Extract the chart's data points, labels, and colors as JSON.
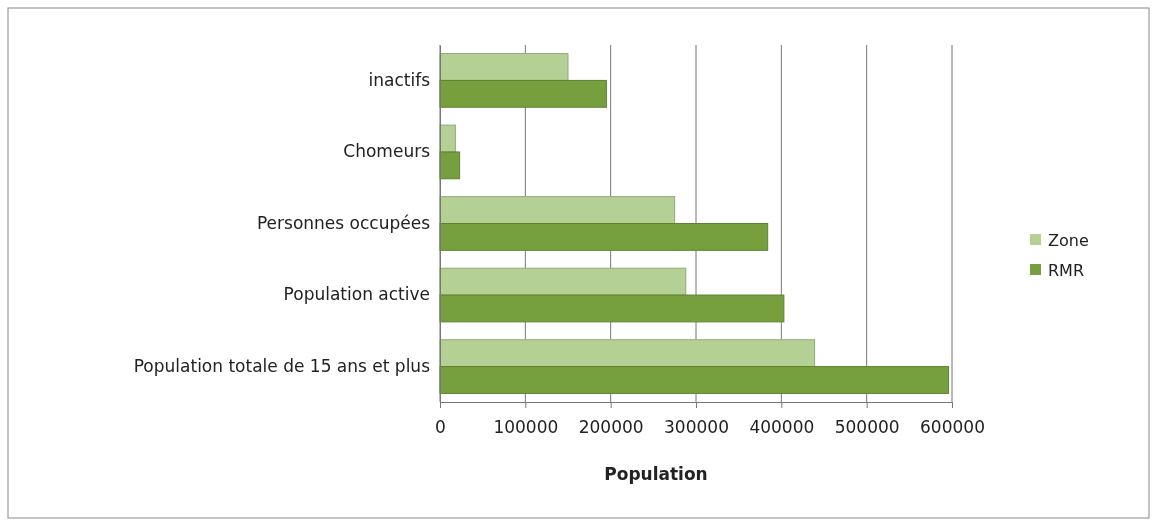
{
  "chart_data": {
    "type": "bar",
    "orientation": "horizontal",
    "xlabel": "Population",
    "categories": [
      "inactifs",
      "Chomeurs",
      "Personnes occupées",
      "Population active",
      "Population totale de 15 ans et plus"
    ],
    "series": [
      {
        "name": "Zone",
        "color": "#b5d095",
        "values": [
          150000,
          18000,
          275000,
          288000,
          439000
        ]
      },
      {
        "name": "RMR",
        "color": "#76a03d",
        "values": [
          195000,
          23000,
          384000,
          403000,
          596000
        ]
      }
    ],
    "xlim": [
      0,
      600000
    ],
    "xticks": [
      0,
      100000,
      200000,
      300000,
      400000,
      500000,
      600000
    ],
    "grid": "x",
    "legend": "right"
  }
}
